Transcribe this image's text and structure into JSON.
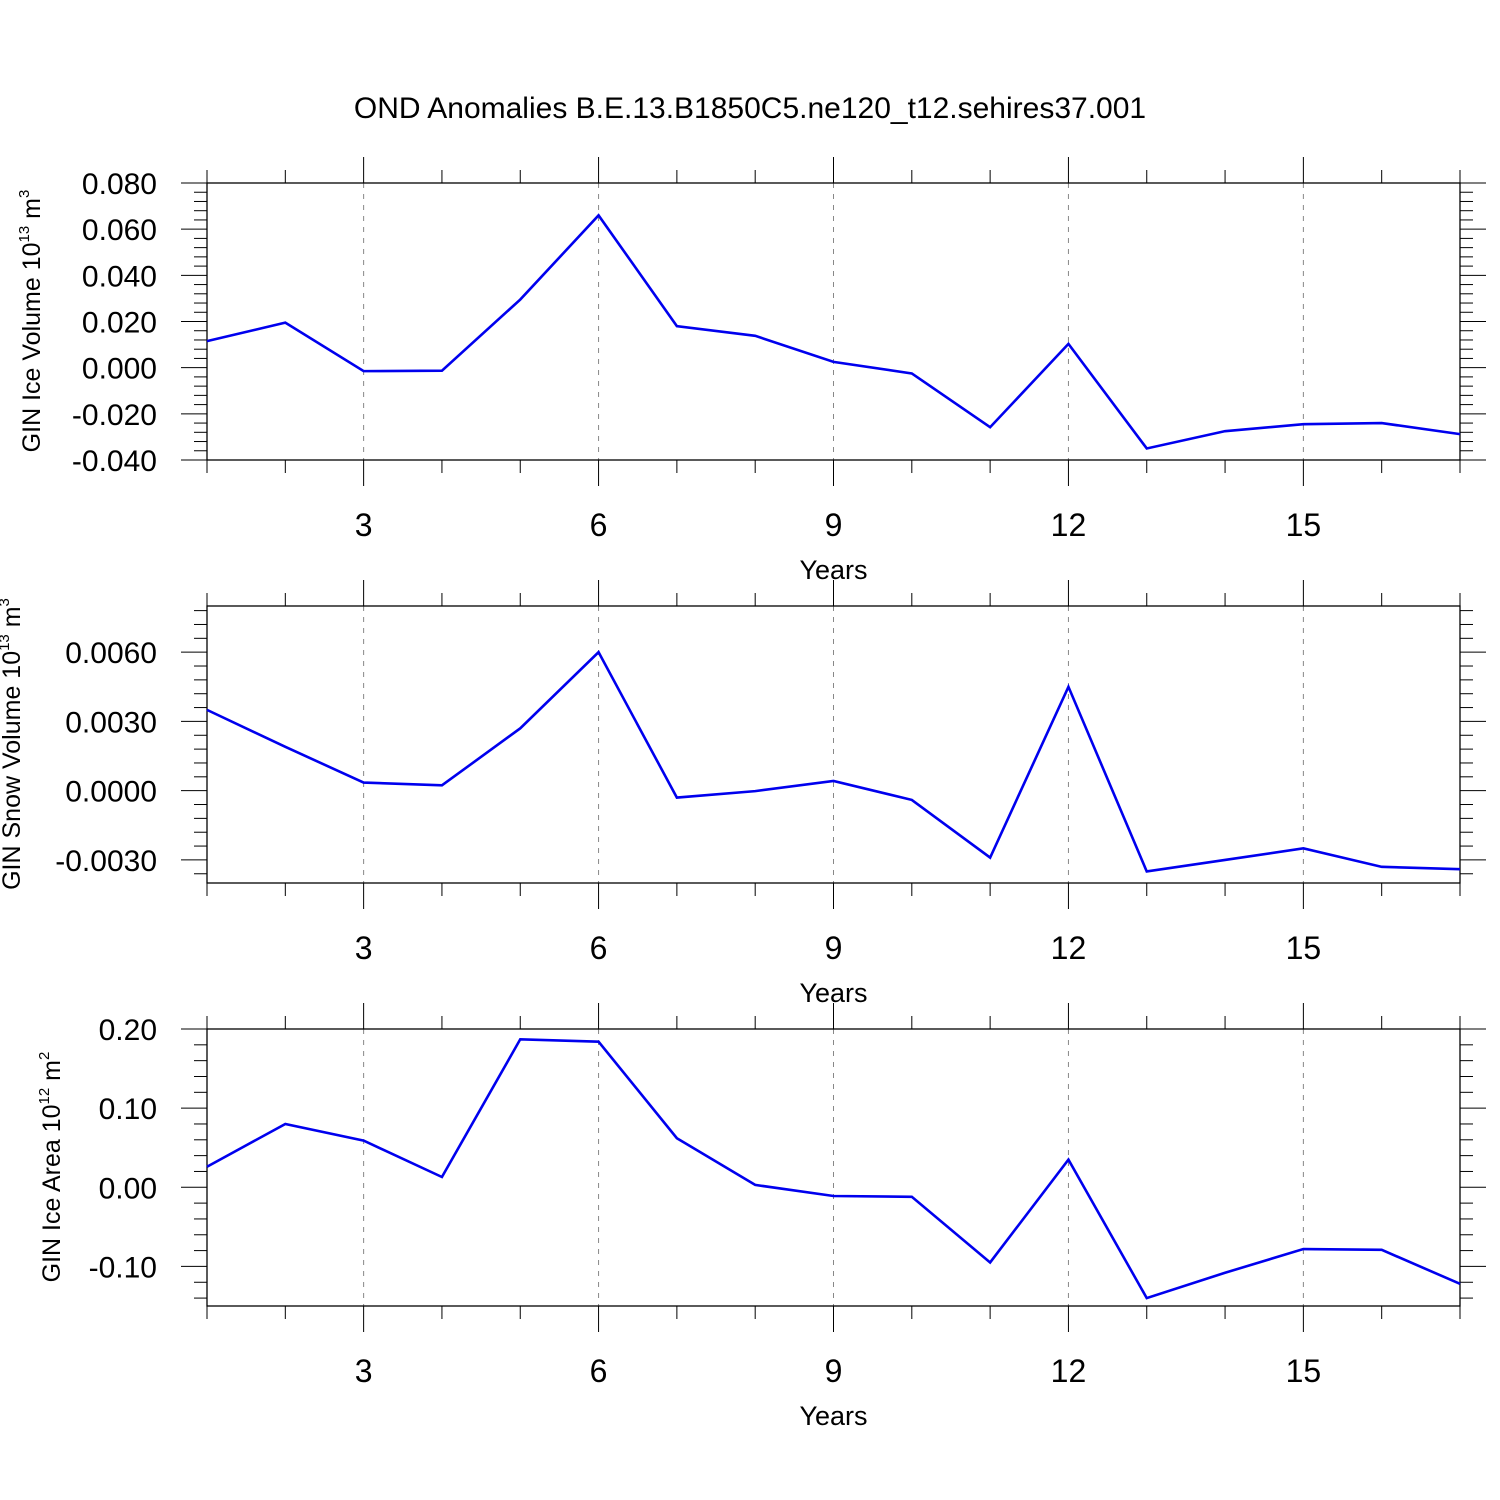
{
  "figure": {
    "title": "OND Anomalies B.E.13.B1850C5.ne120_t12.sehires37.001",
    "line_color": "#0000ee",
    "grid_color": "#888888"
  },
  "chart_data": [
    {
      "type": "line",
      "ylabel": "GIN Ice Volume 10",
      "ylabel_exp": "13",
      "ylabel_unit": " m",
      "ylabel_unit_exp": "3",
      "xlabel": "Years",
      "xlim": [
        1,
        17
      ],
      "ylim": [
        -0.04,
        0.08
      ],
      "xticks": [
        3,
        6,
        9,
        12,
        15
      ],
      "xtick_labels": [
        "3",
        "6",
        "9",
        "12",
        "15"
      ],
      "yticks": [
        -0.04,
        -0.02,
        0.0,
        0.02,
        0.04,
        0.06,
        0.08
      ],
      "ytick_labels": [
        "-0.040",
        "-0.020",
        "0.000",
        "0.020",
        "0.040",
        "0.060",
        "0.080"
      ],
      "grid": "vertical dashed at major x ticks",
      "x": [
        1,
        2,
        3,
        4,
        5,
        6,
        7,
        8,
        9,
        10,
        11,
        12,
        13,
        14,
        15,
        16,
        17
      ],
      "values": [
        0.0115,
        0.0195,
        -0.0015,
        -0.0013,
        0.0295,
        0.066,
        0.018,
        0.0138,
        0.0025,
        -0.0025,
        -0.0258,
        0.0103,
        -0.035,
        -0.0275,
        -0.0245,
        -0.024,
        -0.0288
      ]
    },
    {
      "type": "line",
      "ylabel": "GIN Snow Volume 10",
      "ylabel_exp": "13",
      "ylabel_unit": " m",
      "ylabel_unit_exp": "3",
      "xlabel": "Years",
      "xlim": [
        1,
        17
      ],
      "ylim": [
        -0.004,
        0.008
      ],
      "xticks": [
        3,
        6,
        9,
        12,
        15
      ],
      "xtick_labels": [
        "3",
        "6",
        "9",
        "12",
        "15"
      ],
      "yticks": [
        -0.003,
        0.0,
        0.003,
        0.006
      ],
      "ytick_labels": [
        "-0.0030",
        "0.0000",
        "0.0030",
        "0.0060"
      ],
      "grid": "vertical dashed at major x ticks",
      "x": [
        1,
        2,
        3,
        4,
        5,
        6,
        7,
        8,
        9,
        10,
        11,
        12,
        13,
        14,
        15,
        16,
        17
      ],
      "values": [
        0.0035,
        0.0019,
        0.00035,
        0.00023,
        0.0027,
        0.006,
        -0.0003,
        -2e-05,
        0.00042,
        -0.0004,
        -0.0029,
        0.0045,
        -0.0035,
        -0.003,
        -0.0025,
        -0.0033,
        -0.0034
      ]
    },
    {
      "type": "line",
      "ylabel": "GIN Ice Area 10",
      "ylabel_exp": "12",
      "ylabel_unit": " m",
      "ylabel_unit_exp": "2",
      "xlabel": "Years",
      "xlim": [
        1,
        17
      ],
      "ylim": [
        -0.15,
        0.2
      ],
      "xticks": [
        3,
        6,
        9,
        12,
        15
      ],
      "xtick_labels": [
        "3",
        "6",
        "9",
        "12",
        "15"
      ],
      "yticks": [
        -0.1,
        0.0,
        0.1,
        0.2
      ],
      "ytick_labels": [
        "-0.10",
        "0.00",
        "0.10",
        "0.20"
      ],
      "grid": "vertical dashed at major x ticks",
      "x": [
        1,
        2,
        3,
        4,
        5,
        6,
        7,
        8,
        9,
        10,
        11,
        12,
        13,
        14,
        15,
        16,
        17
      ],
      "values": [
        0.026,
        0.08,
        0.059,
        0.013,
        0.187,
        0.184,
        0.062,
        0.003,
        -0.011,
        -0.012,
        -0.095,
        0.035,
        -0.14,
        -0.108,
        -0.078,
        -0.079,
        -0.122
      ]
    }
  ]
}
